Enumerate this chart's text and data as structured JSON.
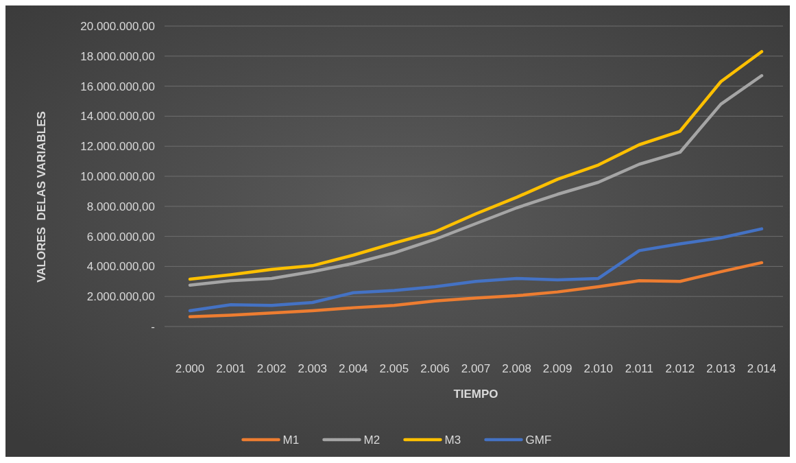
{
  "chart_data": {
    "type": "line",
    "xlabel": "TIEMPO",
    "ylabel": "VALORES  DELAS VARIABLES",
    "categories": [
      "2.000",
      "2.001",
      "2.002",
      "2.003",
      "2.004",
      "2.005",
      "2.006",
      "2.007",
      "2.008",
      "2.009",
      "2.010",
      "2.011",
      "2.012",
      "2.013",
      "2.014"
    ],
    "series": [
      {
        "name": "M1",
        "color": "#ed7d31",
        "values": [
          650000,
          750000,
          900000,
          1050000,
          1250000,
          1400000,
          1700000,
          1900000,
          2050000,
          2300000,
          2650000,
          3050000,
          3000000,
          3650000,
          4250000
        ]
      },
      {
        "name": "M2",
        "color": "#a5a5a5",
        "values": [
          2750000,
          3050000,
          3200000,
          3650000,
          4200000,
          4900000,
          5800000,
          6850000,
          7900000,
          8800000,
          9600000,
          10800000,
          11600000,
          14800000,
          16700000
        ]
      },
      {
        "name": "M3",
        "color": "#ffc000",
        "values": [
          3150000,
          3450000,
          3800000,
          4050000,
          4750000,
          5550000,
          6300000,
          7500000,
          8600000,
          9800000,
          10750000,
          12100000,
          13000000,
          16300000,
          18300000
        ]
      },
      {
        "name": "GMF",
        "color": "#4472c4",
        "values": [
          1050000,
          1450000,
          1400000,
          1600000,
          2250000,
          2400000,
          2650000,
          3000000,
          3200000,
          3100000,
          3200000,
          5050000,
          5500000,
          5900000,
          6500000
        ]
      }
    ],
    "ylim": [
      0,
      20000000
    ],
    "yticks": [
      {
        "value": 0,
        "label": "-"
      },
      {
        "value": 2000000,
        "label": "2.000.000,00"
      },
      {
        "value": 4000000,
        "label": "4.000.000,00"
      },
      {
        "value": 6000000,
        "label": "6.000.000,00"
      },
      {
        "value": 8000000,
        "label": "8.000.000,00"
      },
      {
        "value": 10000000,
        "label": "10.000.000,00"
      },
      {
        "value": 12000000,
        "label": "12.000.000,00"
      },
      {
        "value": 14000000,
        "label": "14.000.000,00"
      },
      {
        "value": 16000000,
        "label": "16.000.000,00"
      },
      {
        "value": 18000000,
        "label": "18.000.000,00"
      },
      {
        "value": 20000000,
        "label": "20.000.000,00"
      }
    ],
    "grid": "y",
    "legend": "bottom",
    "marker": "none",
    "line_style": "solid"
  }
}
